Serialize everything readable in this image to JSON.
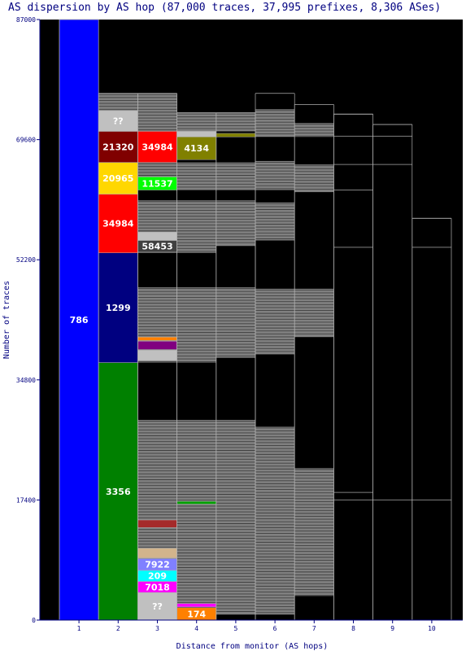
{
  "chart_data": {
    "type": "bar",
    "title": "AS dispersion by AS hop (87,000 traces, 37,995 prefixes, 8,306 ASes)",
    "xlabel": "Distance from monitor (AS hops)",
    "ylabel": "Number of traces",
    "ylim": [
      0,
      87000
    ],
    "yticks": [
      "0",
      "17400",
      "34800",
      "52200",
      "69600",
      "87000"
    ],
    "categories": [
      "1",
      "2",
      "3",
      "4",
      "5",
      "6",
      "7",
      "8",
      "9",
      "10"
    ],
    "top": [
      87000,
      76300,
      76300,
      73500,
      73500,
      76300,
      74700,
      73300,
      71800,
      58200
    ],
    "blocks": [
      {
        "hop": 1,
        "y0": 0,
        "y1": 87000,
        "color": "#0000ff",
        "label": "786"
      },
      {
        "hop": 2,
        "y0": 0,
        "y1": 37300,
        "color": "#008000",
        "label": "3356"
      },
      {
        "hop": 2,
        "y0": 37300,
        "y1": 53200,
        "color": "#000080",
        "label": "1299"
      },
      {
        "hop": 2,
        "y0": 53200,
        "y1": 61700,
        "color": "#ff0000",
        "label": "34984"
      },
      {
        "hop": 2,
        "y0": 61700,
        "y1": 66300,
        "color": "#ffd700",
        "label": "20965"
      },
      {
        "hop": 2,
        "y0": 66300,
        "y1": 70800,
        "color": "#800000",
        "label": "21320"
      },
      {
        "hop": 2,
        "y0": 70800,
        "y1": 73800,
        "color": "#c0c0c0",
        "label": "??"
      },
      {
        "hop": 3,
        "y0": 0,
        "y1": 4000,
        "color": "#c0c0c0",
        "label": "??"
      },
      {
        "hop": 3,
        "y0": 4000,
        "y1": 5600,
        "color": "#ff00ff",
        "label": "7018"
      },
      {
        "hop": 3,
        "y0": 5600,
        "y1": 7200,
        "color": "#00ffff",
        "label": "209"
      },
      {
        "hop": 3,
        "y0": 7200,
        "y1": 8900,
        "color": "#8080ff",
        "label": "7922"
      },
      {
        "hop": 3,
        "y0": 9000,
        "y1": 10400,
        "color": "#d2b48c",
        "label": ""
      },
      {
        "hop": 3,
        "y0": 13400,
        "y1": 14500,
        "color": "#a52a2a",
        "label": ""
      },
      {
        "hop": 3,
        "y0": 37600,
        "y1": 39100,
        "color": "#c0c0c0",
        "label": ""
      },
      {
        "hop": 3,
        "y0": 39200,
        "y1": 40400,
        "color": "#800080",
        "label": ""
      },
      {
        "hop": 3,
        "y0": 40500,
        "y1": 41000,
        "color": "#ff8000",
        "label": ""
      },
      {
        "hop": 3,
        "y0": 53300,
        "y1": 55000,
        "color": "#404040",
        "label": "58453"
      },
      {
        "hop": 3,
        "y0": 55000,
        "y1": 56200,
        "color": "#c0c0c0",
        "label": ""
      },
      {
        "hop": 3,
        "y0": 62300,
        "y1": 64200,
        "color": "#00ff00",
        "label": "11537"
      },
      {
        "hop": 3,
        "y0": 66300,
        "y1": 70800,
        "color": "#ff0000",
        "label": "34984"
      },
      {
        "hop": 4,
        "y0": 0,
        "y1": 1800,
        "color": "#ff8000",
        "label": "174"
      },
      {
        "hop": 4,
        "y0": 1900,
        "y1": 2400,
        "color": "#ff00ff",
        "label": ""
      },
      {
        "hop": 4,
        "y0": 16800,
        "y1": 17200,
        "color": "#00a000",
        "label": ""
      },
      {
        "hop": 4,
        "y0": 66700,
        "y1": 70000,
        "color": "#808000",
        "label": "4134"
      },
      {
        "hop": 4,
        "y0": 70000,
        "y1": 70800,
        "color": "#c0c0c0",
        "label": ""
      },
      {
        "hop": 5,
        "y0": 70000,
        "y1": 70500,
        "color": "#808000",
        "label": ""
      }
    ],
    "gray_regions": [
      {
        "hop": 2,
        "y0": 73800,
        "y1": 76300
      },
      {
        "hop": 3,
        "y0": 2300,
        "y1": 29000
      },
      {
        "hop": 3,
        "y0": 37300,
        "y1": 48200
      },
      {
        "hop": 3,
        "y0": 53200,
        "y1": 60800
      },
      {
        "hop": 3,
        "y0": 62300,
        "y1": 66300
      },
      {
        "hop": 3,
        "y0": 70800,
        "y1": 76300
      },
      {
        "hop": 4,
        "y0": 2300,
        "y1": 29000
      },
      {
        "hop": 4,
        "y0": 37300,
        "y1": 48200
      },
      {
        "hop": 4,
        "y0": 53200,
        "y1": 60800
      },
      {
        "hop": 4,
        "y0": 62300,
        "y1": 66300
      },
      {
        "hop": 4,
        "y0": 70800,
        "y1": 73500
      },
      {
        "hop": 5,
        "y0": 800,
        "y1": 29000
      },
      {
        "hop": 5,
        "y0": 38000,
        "y1": 48200
      },
      {
        "hop": 5,
        "y0": 54200,
        "y1": 60800
      },
      {
        "hop": 5,
        "y0": 62300,
        "y1": 66300
      },
      {
        "hop": 5,
        "y0": 70800,
        "y1": 73500
      },
      {
        "hop": 6,
        "y0": 800,
        "y1": 28000
      },
      {
        "hop": 6,
        "y0": 38500,
        "y1": 48000
      },
      {
        "hop": 6,
        "y0": 55000,
        "y1": 60500
      },
      {
        "hop": 6,
        "y0": 62300,
        "y1": 66500
      },
      {
        "hop": 6,
        "y0": 70000,
        "y1": 74000
      },
      {
        "hop": 7,
        "y0": 3500,
        "y1": 22000
      },
      {
        "hop": 7,
        "y0": 41000,
        "y1": 48000
      },
      {
        "hop": 7,
        "y0": 62000,
        "y1": 66000
      },
      {
        "hop": 7,
        "y0": 70000,
        "y1": 72000
      }
    ],
    "grid_lines": [
      {
        "hop": 8,
        "y": 17400
      },
      {
        "hop": 8,
        "y": 18500
      },
      {
        "hop": 8,
        "y": 54000
      },
      {
        "hop": 8,
        "y": 62300
      },
      {
        "hop": 8,
        "y": 66000
      },
      {
        "hop": 8,
        "y": 70100
      },
      {
        "hop": 8,
        "y": 73300
      },
      {
        "hop": 9,
        "y": 17400
      },
      {
        "hop": 9,
        "y": 66000
      },
      {
        "hop": 9,
        "y": 70100
      },
      {
        "hop": 9,
        "y": 71800
      },
      {
        "hop": 10,
        "y": 17400
      },
      {
        "hop": 10,
        "y": 54000
      },
      {
        "hop": 10,
        "y": 58200
      }
    ]
  },
  "colors": {
    "background": "#ffffff",
    "plot_bg": "#000000",
    "axis": "#000080",
    "stripe_gray": "#808080",
    "stripe_dark": "#404040",
    "divider": "#b0b0b0"
  }
}
